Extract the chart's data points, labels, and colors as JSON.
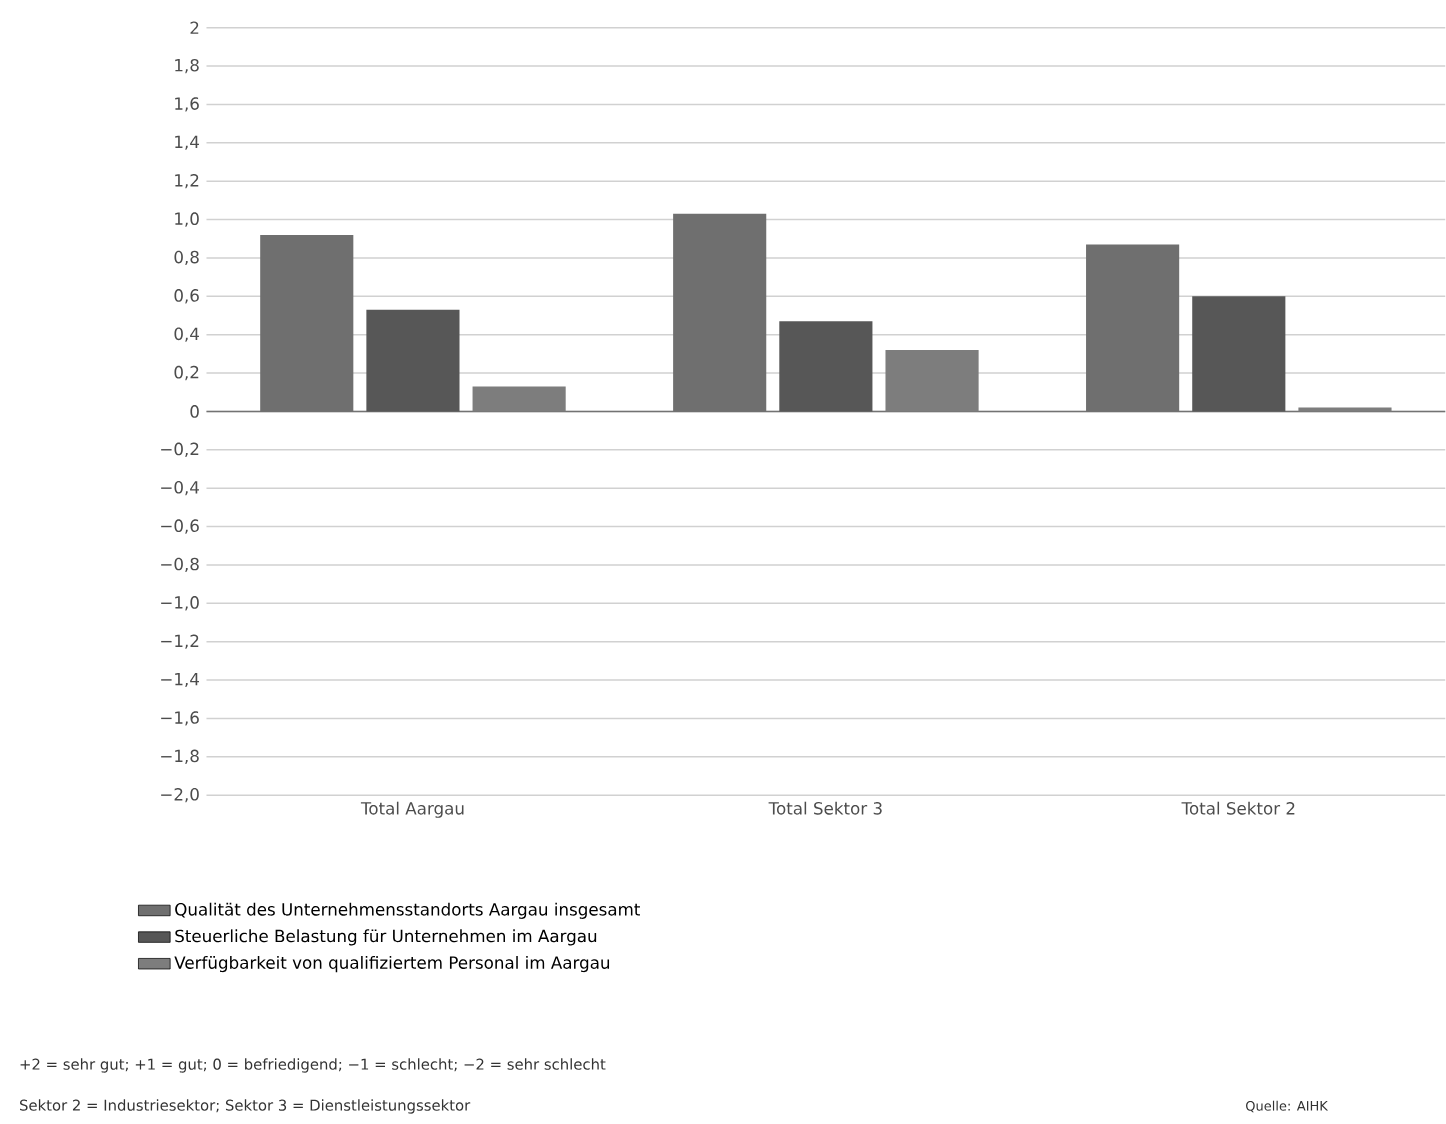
{
  "chart_data": {
    "type": "bar",
    "categories": [
      "Total Aargau",
      "Total Sektor 3",
      "Total Sektor 2"
    ],
    "series": [
      {
        "name": "Qualität des Unternehmensstandorts Aargau insgesamt",
        "color": "#6f6f6f",
        "values": [
          0.92,
          1.03,
          0.87
        ]
      },
      {
        "name": "Steuerliche Belastung für Unternehmen im Aargau",
        "color": "#575757",
        "values": [
          0.53,
          0.47,
          0.6
        ]
      },
      {
        "name": "Verfügbarkeit von qualifiziertem Personal im Aargau",
        "color": "#7d7d7d",
        "values": [
          0.13,
          0.32,
          0.02
        ]
      }
    ],
    "ylim": [
      -2,
      2
    ],
    "yticks": [
      {
        "value": -2,
        "label": "−2,0"
      },
      {
        "value": -1.8,
        "label": "−1,8"
      },
      {
        "value": -1.6,
        "label": "−1,6"
      },
      {
        "value": -1.4,
        "label": "−1,4"
      },
      {
        "value": -1.2,
        "label": "−1,2"
      },
      {
        "value": -1,
        "label": "−1,0"
      },
      {
        "value": -0.8,
        "label": "−0,8"
      },
      {
        "value": -0.6,
        "label": "−0,6"
      },
      {
        "value": -0.4,
        "label": "−0,4"
      },
      {
        "value": -0.2,
        "label": "−0,2"
      },
      0,
      {
        "value": 0.2,
        "label": "0,2"
      },
      {
        "value": 0.4,
        "label": "0,4"
      },
      {
        "value": 0.6,
        "label": "0,6"
      },
      {
        "value": 0.8,
        "label": "0,8"
      },
      {
        "value": 1,
        "label": "1,0"
      },
      {
        "value": 1.2,
        "label": "1,2"
      },
      {
        "value": 1.4,
        "label": "1,4"
      },
      {
        "value": 1.6,
        "label": "1,6"
      },
      {
        "value": 1.8,
        "label": "1,8"
      },
      2
    ],
    "grid": "y",
    "legend": "bottom",
    "annotations": [
      "+2 = sehr gut; +1 = gut; 0 = befriedigend; −1 = schlecht; −2 = sehr schlecht",
      "Sektor 2 = Industriesektor; Sektor 3 = Dienstleistungssektor",
      "Quelle: AIHK"
    ]
  }
}
